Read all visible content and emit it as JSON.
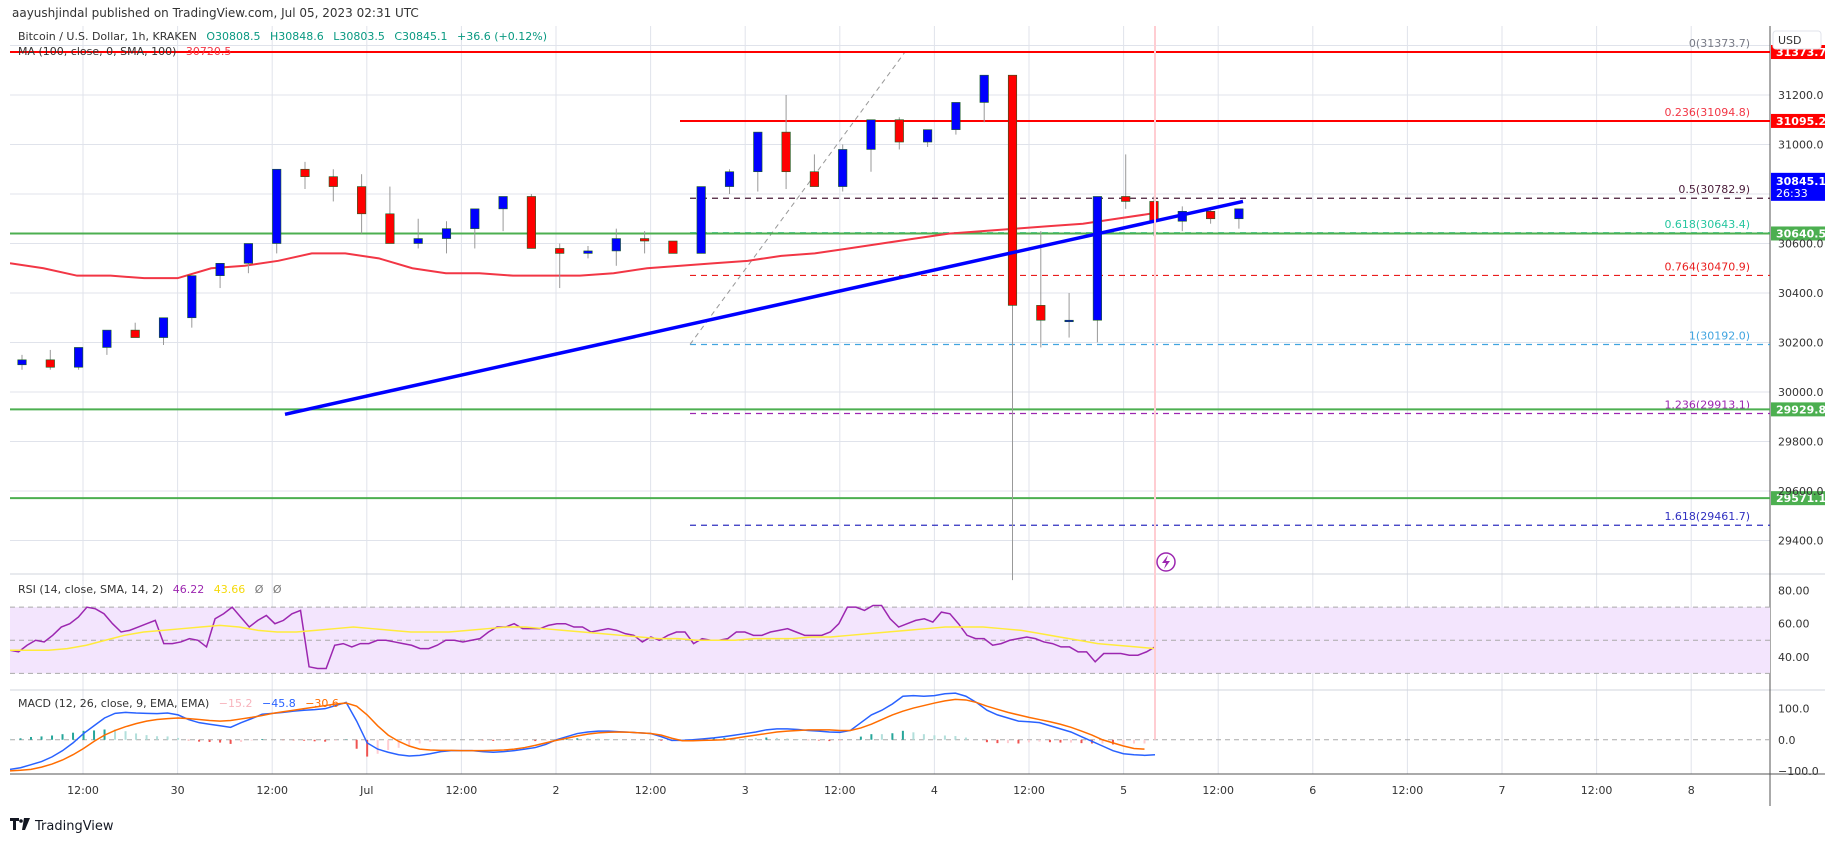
{
  "publisher": "aayushjindal published on TradingView.com, Jul 05, 2023 02:31 UTC",
  "symbol_legend": {
    "title": "Bitcoin / U.S. Dollar, 1h, KRAKEN",
    "open": "O30808.5",
    "high": "H30848.6",
    "low": "L30803.5",
    "close": "C30845.1",
    "change": "+36.6 (+0.12%)"
  },
  "ma_legend": {
    "label": "MA (100, close, 0, SMA, 100)",
    "value": "30720.5"
  },
  "rsi_legend": {
    "label": "RSI (14, close, SMA, 14, 2)",
    "rsi": "46.22",
    "sma": "43.66",
    "extra1": "Ø",
    "extra2": "Ø"
  },
  "macd_legend": {
    "label": "MACD (12, 26, close, 9, EMA, EMA)",
    "hist": "−15.2",
    "macd": "−45.8",
    "signal": "−30.6"
  },
  "footer": {
    "brand": "TradingView",
    "logo_icon": "tradingview-logo-icon"
  },
  "colors": {
    "up_candle": "#0000ff",
    "down_candle": "#ff0000",
    "ma": "#f23645",
    "support_green": "#4caf50",
    "resistance_red": "#ff0000",
    "trendline": "#0000ff",
    "rsi_line": "#9c27b0",
    "rsi_sma": "#ffeb3b",
    "macd_line": "#2962ff",
    "signal_line": "#ff6d00",
    "rsi_band": "#f3e5fd"
  },
  "chart_data": [
    {
      "type": "candlestick",
      "title": "Bitcoin / U.S. Dollar, 1h, KRAKEN",
      "ylabel": "USD",
      "ylim": [
        29300,
        31450
      ],
      "y_ticks": [
        "31200.0",
        "31000.0",
        "30800.0",
        "30600.0",
        "30400.0",
        "30200.0",
        "30000.0",
        "29800.0",
        "29600.0",
        "29400.0"
      ],
      "x_ticks": [
        "12:00",
        "30",
        "12:00",
        "Jul",
        "12:00",
        "2",
        "12:00",
        "3",
        "12:00",
        "4",
        "12:00",
        "5",
        "12:00",
        "6",
        "12:00",
        "7",
        "12:00",
        "8"
      ],
      "last_price": {
        "value": "30845.1",
        "countdown": "26:33"
      },
      "horizontal_lines": [
        {
          "label": "31373.7",
          "price": 31373.7,
          "color": "#ff0000",
          "style": "solid"
        },
        {
          "label": "31095.2",
          "price": 31095.2,
          "color": "#ff0000",
          "style": "solid"
        },
        {
          "label": "30640.5",
          "price": 30640.5,
          "color": "#4caf50",
          "style": "solid"
        },
        {
          "label": "29929.8",
          "price": 29929.8,
          "color": "#4caf50",
          "style": "solid"
        },
        {
          "label": "29571.1",
          "price": 29571.1,
          "color": "#4caf50",
          "style": "solid"
        }
      ],
      "fibonacci": [
        {
          "level": "0",
          "price": 31373.7,
          "text": "0(31373.7)",
          "color": "#787b86"
        },
        {
          "level": "0.236",
          "price": 31094.8,
          "text": "0.236(31094.8)",
          "color": "#f23645"
        },
        {
          "level": "0.5",
          "price": 30782.9,
          "text": "0.5(30782.9)",
          "color": "#4a1c3a"
        },
        {
          "level": "0.618",
          "price": 30643.4,
          "text": "0.618(30643.4)",
          "color": "#26c6a0"
        },
        {
          "level": "0.764",
          "price": 30470.9,
          "text": "0.764(30470.9)",
          "color": "#e91e1e"
        },
        {
          "level": "1",
          "price": 30192.0,
          "text": "1(30192.0)",
          "color": "#42a5e0"
        },
        {
          "level": "1.236",
          "price": 29913.1,
          "text": "1.236(29913.1)",
          "color": "#9c27b0"
        },
        {
          "level": "1.618",
          "price": 29461.7,
          "text": "1.618(29461.7)",
          "color": "#3030c0"
        }
      ],
      "trendline": {
        "from": {
          "x": 275,
          "price": 29910
        },
        "to": {
          "x": 1233,
          "price": 30770
        }
      },
      "ma_value": "30720.5",
      "candles": [
        [
          30110,
          30150,
          30090,
          30130
        ],
        [
          30130,
          30170,
          30090,
          30100
        ],
        [
          30100,
          30160,
          30090,
          30180
        ],
        [
          30180,
          30220,
          30150,
          30250
        ],
        [
          30250,
          30280,
          30230,
          30220
        ],
        [
          30220,
          30270,
          30190,
          30300
        ],
        [
          30300,
          30310,
          30260,
          30470
        ],
        [
          30470,
          30480,
          30420,
          30520
        ],
        [
          30520,
          30560,
          30480,
          30600
        ],
        [
          30600,
          30780,
          30560,
          30900
        ],
        [
          30900,
          30930,
          30820,
          30870
        ],
        [
          30870,
          30900,
          30770,
          30830
        ],
        [
          30830,
          30880,
          30640,
          30720
        ],
        [
          30720,
          30830,
          30610,
          30600
        ],
        [
          30600,
          30700,
          30580,
          30620
        ],
        [
          30620,
          30690,
          30560,
          30660
        ],
        [
          30660,
          30720,
          30580,
          30740
        ],
        [
          30740,
          30770,
          30650,
          30790
        ],
        [
          30790,
          30800,
          30580,
          30580
        ],
        [
          30580,
          30600,
          30420,
          30560
        ],
        [
          30560,
          30590,
          30540,
          30570
        ],
        [
          30570,
          30660,
          30510,
          30620
        ],
        [
          30620,
          30650,
          30560,
          30610
        ],
        [
          30610,
          30600,
          30570,
          30560
        ],
        [
          30560,
          30800,
          30560,
          30830
        ],
        [
          30830,
          30900,
          30800,
          30890
        ],
        [
          30890,
          31000,
          30810,
          31050
        ],
        [
          31050,
          31200,
          30820,
          30890
        ],
        [
          30890,
          30960,
          30830,
          30830
        ],
        [
          30830,
          31000,
          30810,
          30980
        ],
        [
          30980,
          31050,
          30890,
          31100
        ],
        [
          31100,
          31110,
          30980,
          31010
        ],
        [
          31010,
          31040,
          30990,
          31060
        ],
        [
          31060,
          31130,
          31040,
          31170
        ],
        [
          31170,
          31230,
          31090,
          31280
        ],
        [
          31280,
          31270,
          29240,
          30350
        ],
        [
          30350,
          30650,
          30180,
          30290
        ],
        [
          30290,
          30400,
          30220,
          30290
        ],
        [
          30290,
          30450,
          30200,
          30790
        ],
        [
          30790,
          30960,
          30740,
          30770
        ],
        [
          30770,
          30790,
          30630,
          30690
        ],
        [
          30690,
          30750,
          30650,
          30730
        ],
        [
          30730,
          30740,
          30680,
          30700
        ],
        [
          30700,
          30720,
          30660,
          30740
        ]
      ],
      "ma_series_hint": [
        30520,
        30500,
        30470,
        30470,
        30460,
        30460,
        30500,
        30510,
        30530,
        30560,
        30560,
        30540,
        30500,
        30480,
        30480,
        30470,
        30470,
        30470,
        30480,
        30500,
        30510,
        30520,
        30530,
        30550,
        30560,
        30580,
        30600,
        30620,
        30640,
        30650,
        30660,
        30670,
        30680,
        30700,
        30720
      ]
    },
    {
      "type": "line",
      "title": "RSI (14, close, SMA, 14, 2)",
      "ylim": [
        20,
        90
      ],
      "y_ticks": [
        "80.00",
        "60.00",
        "40.00"
      ],
      "band": [
        30,
        70
      ],
      "series": [
        {
          "name": "RSI",
          "color": "#9c27b0",
          "values": [
            44,
            43,
            47,
            50,
            49,
            53,
            58,
            60,
            64,
            70,
            69,
            66,
            60,
            55,
            56,
            58,
            60,
            62,
            48,
            48,
            49,
            51,
            50,
            46,
            63,
            66,
            70,
            64,
            58,
            62,
            65,
            60,
            62,
            66,
            68,
            34,
            33,
            33,
            47,
            48,
            46,
            48,
            48,
            50,
            50,
            49,
            48,
            47,
            45,
            45,
            47,
            50,
            50,
            49,
            50,
            51,
            55,
            58,
            58,
            60,
            57,
            57,
            57,
            59,
            60,
            60,
            58,
            58,
            55,
            56,
            57,
            56,
            54,
            53,
            49,
            52,
            50,
            53,
            55,
            55,
            48,
            51,
            50,
            50,
            51,
            55,
            55,
            53,
            53,
            55,
            56,
            57,
            55,
            53,
            53,
            53,
            55,
            60,
            70,
            70,
            68,
            71,
            71,
            63,
            58,
            60,
            62,
            63,
            61,
            67,
            66,
            60,
            53,
            51,
            51,
            47,
            48,
            50,
            51,
            52,
            51,
            49,
            48,
            46,
            46,
            43,
            43,
            37,
            42,
            42,
            42,
            41,
            41,
            43,
            46
          ]
        },
        {
          "name": "RSI SMA",
          "color": "#ffeb3b",
          "values": [
            44,
            44,
            44,
            45,
            47,
            50,
            53,
            55,
            56,
            57,
            58,
            59,
            58,
            56,
            55,
            55,
            56,
            57,
            58,
            57,
            56,
            55,
            55,
            55,
            56,
            57,
            58,
            58,
            57,
            56,
            55,
            54,
            53,
            52,
            51,
            51,
            50,
            50,
            50,
            51,
            51,
            51,
            52,
            52,
            53,
            54,
            55,
            56,
            57,
            58,
            58,
            58,
            57,
            56,
            54,
            52,
            50,
            48,
            47,
            46,
            45
          ]
        }
      ]
    },
    {
      "type": "line",
      "title": "MACD (12, 26, close, 9, EMA, EMA)",
      "ylim": [
        -110,
        160
      ],
      "y_ticks": [
        "100.0",
        "0.0",
        "−100.0"
      ],
      "series": [
        {
          "name": "MACD",
          "color": "#2962ff",
          "values": [
            -95,
            -90,
            -80,
            -70,
            -55,
            -35,
            -10,
            20,
            45,
            70,
            85,
            88,
            86,
            85,
            84,
            86,
            80,
            65,
            55,
            50,
            45,
            40,
            55,
            68,
            82,
            85,
            88,
            92,
            95,
            97,
            100,
            110,
            120,
            60,
            -10,
            -30,
            -40,
            -48,
            -52,
            -50,
            -45,
            -38,
            -35,
            -35,
            -35,
            -38,
            -40,
            -38,
            -35,
            -30,
            -25,
            -15,
            0,
            10,
            20,
            25,
            28,
            28,
            26,
            24,
            22,
            20,
            10,
            -2,
            -2,
            0,
            3,
            6,
            10,
            15,
            20,
            25,
            32,
            35,
            35,
            33,
            30,
            28,
            25,
            24,
            30,
            55,
            80,
            95,
            115,
            140,
            142,
            140,
            142,
            148,
            150,
            140,
            120,
            95,
            80,
            70,
            60,
            58,
            55,
            45,
            35,
            25,
            10,
            -5,
            -20,
            -35,
            -45,
            -48,
            -50,
            -48
          ]
        },
        {
          "name": "Signal",
          "color": "#ff6d00",
          "values": [
            -100,
            -98,
            -95,
            -88,
            -78,
            -65,
            -48,
            -28,
            -5,
            15,
            30,
            42,
            52,
            60,
            65,
            68,
            70,
            68,
            65,
            62,
            60,
            62,
            67,
            72,
            78,
            85,
            90,
            95,
            100,
            105,
            110,
            115,
            118,
            108,
            80,
            45,
            15,
            -5,
            -20,
            -30,
            -33,
            -34,
            -34,
            -35,
            -35,
            -35,
            -34,
            -33,
            -30,
            -25,
            -18,
            -10,
            -2,
            5,
            12,
            18,
            22,
            24,
            25,
            24,
            22,
            20,
            15,
            5,
            -3,
            -3,
            -2,
            -1,
            0,
            5,
            10,
            15,
            20,
            25,
            28,
            30,
            32,
            32,
            32,
            30,
            30,
            38,
            50,
            65,
            80,
            92,
            102,
            110,
            118,
            125,
            130,
            128,
            120,
            108,
            98,
            88,
            80,
            72,
            65,
            58,
            50,
            40,
            28,
            15,
            0,
            -10,
            -20,
            -28,
            -30
          ]
        }
      ]
    }
  ]
}
